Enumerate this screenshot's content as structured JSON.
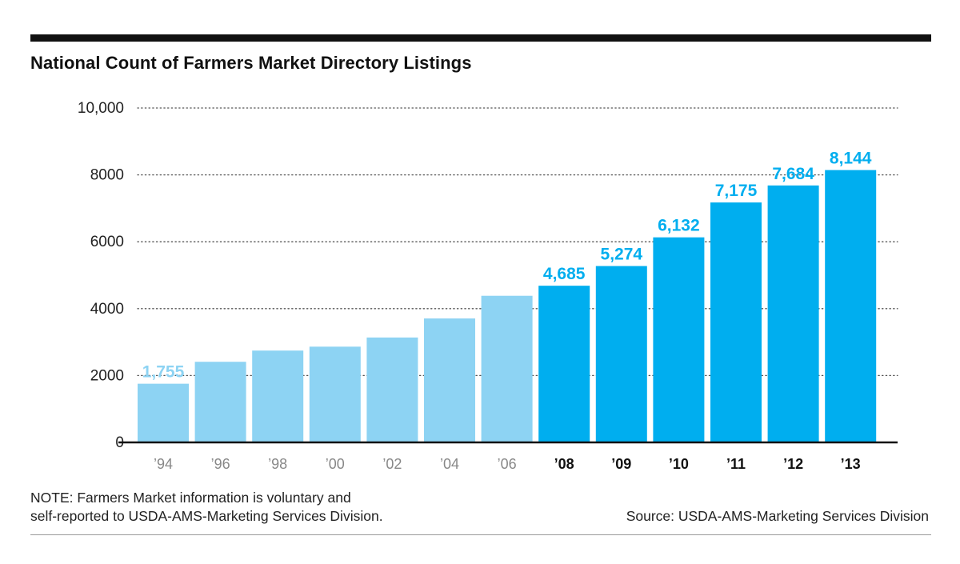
{
  "chart_data": {
    "type": "bar",
    "title": "National Count of Farmers Market Directory Listings",
    "categories": [
      "’94",
      "’96",
      "’98",
      "’00",
      "’02",
      "’04",
      "’06",
      "’08",
      "’09",
      "’10",
      "’11",
      "’12",
      "’13"
    ],
    "values": [
      1755,
      2410,
      2746,
      2863,
      3137,
      3706,
      4385,
      4685,
      5274,
      6132,
      7175,
      7684,
      8144
    ],
    "value_labels": [
      "1,755",
      "",
      "",
      "",
      "",
      "",
      "",
      "4,685",
      "5,274",
      "6,132",
      "7,175",
      "7,684",
      "8,144"
    ],
    "bold_categories": [
      false,
      false,
      false,
      false,
      false,
      false,
      false,
      true,
      true,
      true,
      true,
      true,
      true
    ],
    "colors": {
      "light": "#8dd3f3",
      "dark": "#00aeef"
    },
    "bar_color_groups": [
      "light",
      "light",
      "light",
      "light",
      "light",
      "light",
      "light",
      "dark",
      "dark",
      "dark",
      "dark",
      "dark",
      "dark"
    ],
    "ylim": [
      0,
      10000
    ],
    "y_ticks": [
      {
        "value": 0,
        "label": "0"
      },
      {
        "value": 2000,
        "label": "2000"
      },
      {
        "value": 4000,
        "label": "4000"
      },
      {
        "value": 6000,
        "label": "6000"
      },
      {
        "value": 8000,
        "label": "8000"
      },
      {
        "value": 10000,
        "label": "10,000"
      }
    ],
    "xlabel": "",
    "ylabel": "",
    "grid": "dotted",
    "legend": "none"
  },
  "note": {
    "line1": "NOTE: Farmers Market information is voluntary and",
    "line2": "self-reported to USDA-AMS-Marketing Services Division."
  },
  "source": "Source: USDA-AMS-Marketing Services Division"
}
